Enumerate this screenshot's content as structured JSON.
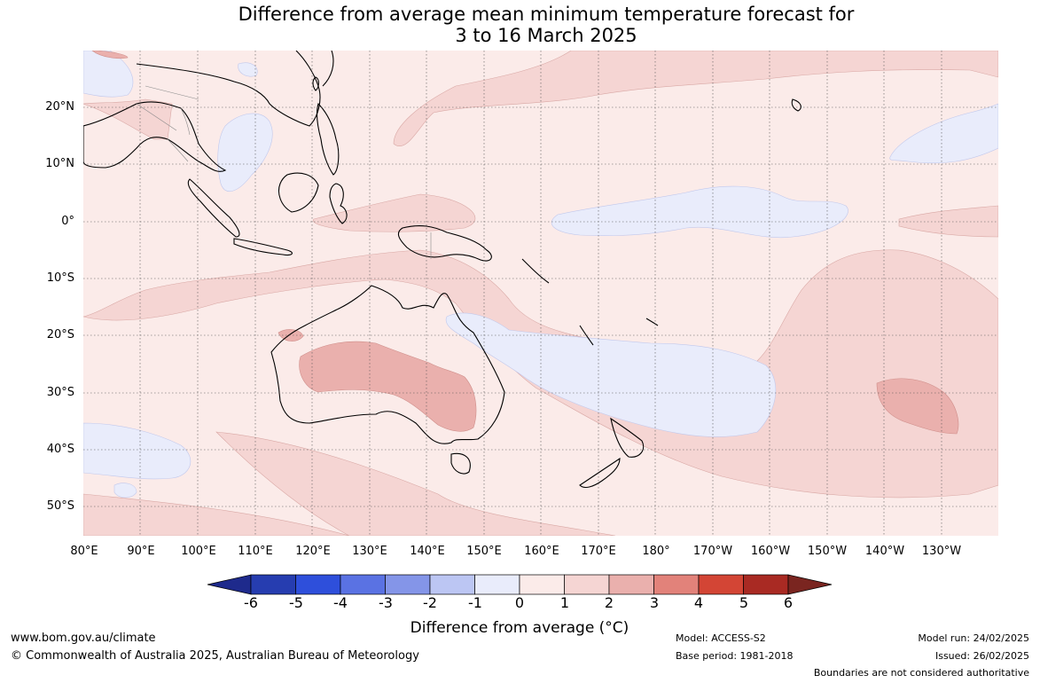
{
  "title": {
    "line1": "Difference from average mean minimum temperature forecast for",
    "line2": "3 to 16 March 2025"
  },
  "map": {
    "lat_labels": [
      "20°N",
      "10°N",
      "0°",
      "10°S",
      "20°S",
      "30°S",
      "40°S",
      "50°S"
    ],
    "lon_labels": [
      "80°E",
      "90°E",
      "100°E",
      "110°E",
      "120°E",
      "130°E",
      "140°E",
      "150°E",
      "160°E",
      "170°E",
      "180°",
      "170°W",
      "160°W",
      "150°W",
      "140°W",
      "130°W"
    ],
    "anomaly_colors": {
      "neg1_0": "#e9ecfb",
      "zero_1": "#fbebe9",
      "one_2": "#f5d5d3",
      "two_3": "#eab0ad"
    }
  },
  "colorbar": {
    "ticks": [
      "-6",
      "-5",
      "-4",
      "-3",
      "-2",
      "-1",
      "0",
      "1",
      "2",
      "3",
      "4",
      "5",
      "6"
    ],
    "colors": [
      "#1e2a8c",
      "#263db0",
      "#2e4fdb",
      "#5a72e3",
      "#8495e8",
      "#bcc6f3",
      "#e9ecfb",
      "#fbebe9",
      "#f5d5d3",
      "#eab0ad",
      "#e2827a",
      "#d34535",
      "#a92a23",
      "#7a2520"
    ],
    "label": "Difference from average (°C)"
  },
  "footer": {
    "website": "www.bom.gov.au/climate",
    "copyright": "© Commonwealth of Australia 2025, Australian Bureau of Meteorology",
    "model": "Model: ACCESS-S2",
    "base_period": "Base period: 1981-2018",
    "model_run": "Model run: 24/02/2025",
    "issued": "Issued: 26/02/2025",
    "disclaimer": "Boundaries are not considered authoritative"
  }
}
